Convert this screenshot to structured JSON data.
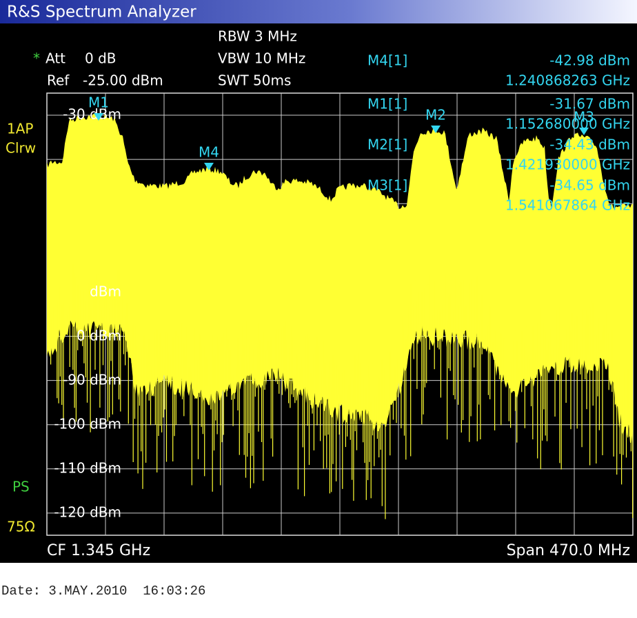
{
  "title": "R&S Spectrum Analyzer",
  "settings": {
    "rbw": "RBW 3 MHz",
    "vbw": "VBW 10 MHz",
    "swt": "SWT 50ms",
    "att_flag": "*",
    "att": "Att",
    "att_value": "0 dB",
    "ref": "Ref",
    "ref_value": "-25.00 dBm"
  },
  "trace": {
    "detector": "1AP",
    "mode": "Clrw",
    "ps": "PS",
    "impedance": "75Ω"
  },
  "y_axis_labels": [
    "-30 dBm",
    "dBm",
    "0 dBm",
    "-90 dBm",
    "-100 dBm",
    "-110 dBm",
    "-120 dBm"
  ],
  "markers": [
    "M1",
    "M2",
    "M3",
    "M4"
  ],
  "marker_readouts": [
    {
      "name": "M4[1]",
      "level": "-42.98 dBm",
      "frequency": "1.240868263 GHz"
    },
    {
      "name": "M1[1]",
      "level": "-31.67 dBm",
      "frequency": "1.152680000 GHz"
    },
    {
      "name": "M2[1]",
      "level": "-34.43 dBm",
      "frequency": "1.421930000 GHz"
    },
    {
      "name": "M3[1]",
      "level": "-34.65 dBm",
      "frequency": "1.541067864 GHz"
    }
  ],
  "footer": {
    "center": "CF 1.345 GHz",
    "span": "Span 470.0 MHz",
    "date": "Date: 3.MAY.2010  16:03:26"
  }
}
